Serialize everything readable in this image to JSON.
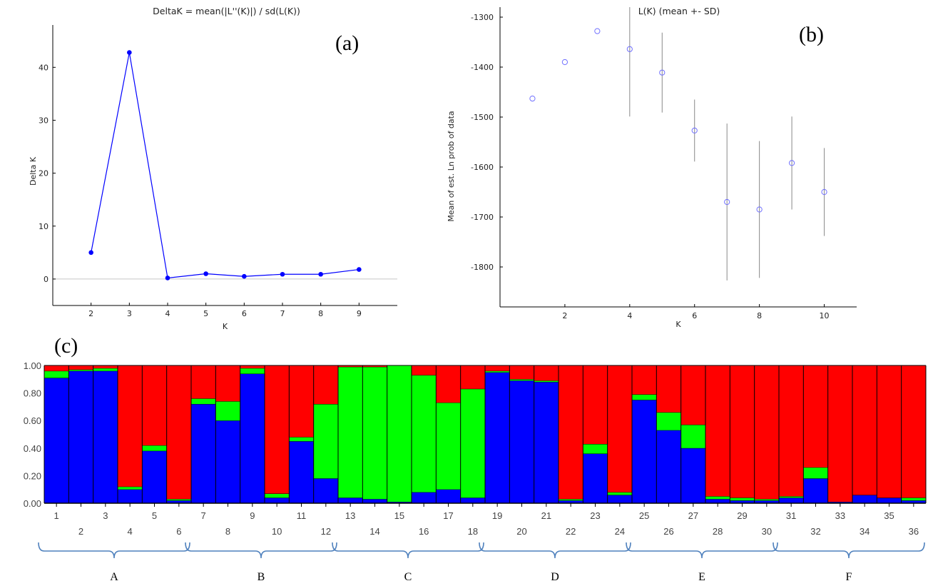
{
  "chart_data": [
    {
      "id": "a",
      "type": "line",
      "panel_label": "(a)",
      "title": "DeltaK = mean(|L''(K)|) / sd(L(K))",
      "xlabel": "K",
      "ylabel": "Delta K",
      "x": [
        2,
        3,
        4,
        5,
        6,
        7,
        8,
        9
      ],
      "series": [
        {
          "values": [
            5.0,
            42.8,
            0.2,
            1.0,
            0.5,
            0.9,
            0.9,
            1.8
          ]
        }
      ],
      "xlim": [
        1,
        10
      ],
      "ylim": [
        -5,
        48
      ],
      "xticks": [
        "2",
        "3",
        "4",
        "5",
        "6",
        "7",
        "8",
        "9"
      ],
      "yticks": [
        "0",
        "10",
        "20",
        "30",
        "40"
      ],
      "zero_line": true,
      "color": "#0000ff"
    },
    {
      "id": "b",
      "type": "scatter",
      "panel_label": "(b)",
      "title": "L(K) (mean +- SD)",
      "xlabel": "K",
      "ylabel": "Mean of est. Ln prob of data",
      "x": [
        1,
        2,
        3,
        4,
        5,
        6,
        7,
        8,
        9,
        10
      ],
      "series": [
        {
          "values": [
            -1463,
            -1390,
            -1328,
            -1364,
            -1411,
            -1527,
            -1670,
            -1685,
            -1592,
            -1650
          ],
          "sd": [
            0,
            0,
            0,
            135,
            80,
            62,
            157,
            137,
            93,
            88
          ]
        }
      ],
      "xlim": [
        0,
        11
      ],
      "ylim": [
        -1880,
        -1280
      ],
      "xticks": [
        "2",
        "4",
        "6",
        "8",
        "10"
      ],
      "yticks": [
        "-1300",
        "-1400",
        "-1500",
        "-1600",
        "-1700",
        "-1800"
      ],
      "color": "#6f6fff"
    },
    {
      "id": "c",
      "type": "bar",
      "stacked": true,
      "panel_label": "(c)",
      "categories": [
        "1",
        "2",
        "3",
        "4",
        "5",
        "6",
        "7",
        "8",
        "9",
        "10",
        "11",
        "12",
        "13",
        "14",
        "15",
        "16",
        "17",
        "18",
        "19",
        "20",
        "21",
        "22",
        "23",
        "24",
        "25",
        "26",
        "27",
        "28",
        "29",
        "30",
        "31",
        "32",
        "33",
        "34",
        "35",
        "36"
      ],
      "series": [
        {
          "color": "#0000ff",
          "values": [
            0.91,
            0.96,
            0.96,
            0.1,
            0.38,
            0.02,
            0.72,
            0.6,
            0.94,
            0.04,
            0.45,
            0.18,
            0.04,
            0.03,
            0.01,
            0.08,
            0.1,
            0.04,
            0.95,
            0.89,
            0.88,
            0.02,
            0.36,
            0.06,
            0.75,
            0.53,
            0.4,
            0.03,
            0.02,
            0.02,
            0.04,
            0.18,
            0.01,
            0.06,
            0.04,
            0.02
          ]
        },
        {
          "color": "#00ff00",
          "values": [
            0.05,
            0.01,
            0.02,
            0.02,
            0.04,
            0.01,
            0.04,
            0.14,
            0.04,
            0.03,
            0.03,
            0.54,
            0.95,
            0.96,
            0.99,
            0.85,
            0.63,
            0.79,
            0.01,
            0.01,
            0.01,
            0.01,
            0.07,
            0.02,
            0.04,
            0.13,
            0.17,
            0.02,
            0.02,
            0.01,
            0.01,
            0.08,
            0.0,
            0.0,
            0.0,
            0.02
          ]
        },
        {
          "color": "#ff0000",
          "values": [
            0.04,
            0.03,
            0.02,
            0.88,
            0.58,
            0.97,
            0.24,
            0.26,
            0.02,
            0.93,
            0.52,
            0.28,
            0.01,
            0.01,
            0.0,
            0.07,
            0.27,
            0.17,
            0.04,
            0.1,
            0.11,
            0.97,
            0.57,
            0.92,
            0.21,
            0.34,
            0.43,
            0.95,
            0.96,
            0.97,
            0.95,
            0.74,
            0.99,
            0.94,
            0.96,
            0.96
          ]
        }
      ],
      "ylim": [
        0,
        1
      ],
      "yticks": [
        "0.00",
        "0.20",
        "0.40",
        "0.60",
        "0.80",
        "1.00"
      ],
      "groups": [
        {
          "label": "A",
          "from": 1,
          "to": 6
        },
        {
          "label": "B",
          "from": 7,
          "to": 12
        },
        {
          "label": "C",
          "from": 13,
          "to": 18
        },
        {
          "label": "D",
          "from": 19,
          "to": 24
        },
        {
          "label": "E",
          "from": 25,
          "to": 30
        },
        {
          "label": "F",
          "from": 31,
          "to": 36
        }
      ],
      "bracket_color": "#4f81bd"
    }
  ]
}
